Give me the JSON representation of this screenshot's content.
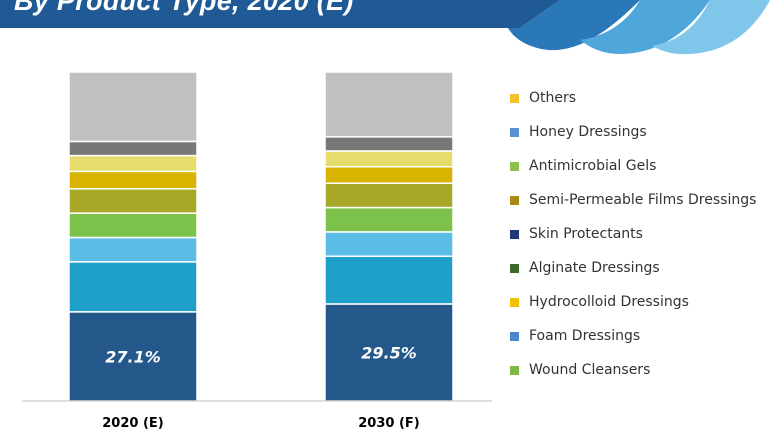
{
  "header": {
    "title": "By Product Type, 2020 (E)",
    "colors": {
      "dark": "#1f5a96",
      "mid": "#2b78b8",
      "light": "#4fa6da",
      "pale": "#7fc6ea"
    }
  },
  "chart_data": {
    "type": "bar",
    "stacked": true,
    "percent": true,
    "categories": [
      "2020 (E)",
      "2030 (F)"
    ],
    "series": [
      {
        "name": "Wound Cleansers",
        "values": [
          27.1,
          29.5
        ],
        "color": "#25588a",
        "label": [
          "27.1%",
          "29.5%"
        ]
      },
      {
        "name": "Foam Dressings",
        "values": [
          15.2,
          14.5
        ],
        "color": "#1fa0c8"
      },
      {
        "name": "Hydrocolloid Dressings",
        "values": [
          7.4,
          7.4
        ],
        "color": "#5bbde6"
      },
      {
        "name": "Alginate Dressings",
        "values": [
          7.4,
          7.4
        ],
        "color": "#7cc24a"
      },
      {
        "name": "Skin Protectants",
        "values": [
          7.4,
          7.4
        ],
        "color": "#a8a828"
      },
      {
        "name": "Semi-Permeable Films Dressings",
        "values": [
          5.3,
          5.0
        ],
        "color": "#d8b400"
      },
      {
        "name": "Antimicrobial Gels",
        "values": [
          4.8,
          4.8
        ],
        "color": "#e6dc6e"
      },
      {
        "name": "Honey Dressings",
        "values": [
          4.3,
          4.3
        ],
        "color": "#787878"
      },
      {
        "name": "Others",
        "values": [
          21.1,
          19.7
        ],
        "color": "#c0c0c0"
      }
    ],
    "legend_position": "right",
    "grid": false,
    "ylim": [
      0,
      100
    ]
  },
  "legend": {
    "items": [
      {
        "label": "Others",
        "color": "#f5c12b"
      },
      {
        "label": "Honey Dressings",
        "color": "#5b8fd3"
      },
      {
        "label": "Antimicrobial Gels",
        "color": "#8cc14f"
      },
      {
        "label": "Semi-Permeable Films Dressings",
        "color": "#a88a12"
      },
      {
        "label": "Skin Protectants",
        "color": "#203a78"
      },
      {
        "label": "Alginate Dressings",
        "color": "#3a6a2a"
      },
      {
        "label": "Hydrocolloid Dressings",
        "color": "#f0c000"
      },
      {
        "label": "Foam Dressings",
        "color": "#4a86cc"
      },
      {
        "label": "Wound Cleansers",
        "color": "#7dbb45"
      }
    ]
  }
}
